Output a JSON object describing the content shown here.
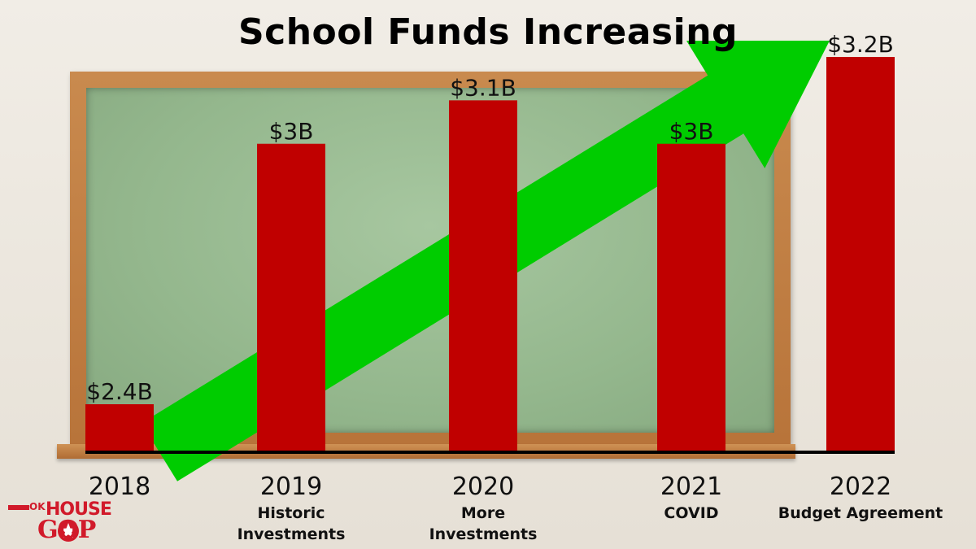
{
  "chart_data": {
    "type": "bar",
    "title": "School Funds Increasing",
    "categories": [
      "2018",
      "2019",
      "2020",
      "2021",
      "2022"
    ],
    "category_sublabels": [
      "",
      "Historic\nInvestments",
      "More\nInvestments",
      "COVID",
      "Budget Agreement"
    ],
    "values": [
      2.4,
      3.0,
      3.1,
      3.0,
      3.2
    ],
    "value_labels": [
      "$2.4B",
      "$3B",
      "$3.1B",
      "$3B",
      "$3.2B"
    ],
    "unit": "$B",
    "bar_color": "#c00000",
    "arrow_color": "#00cc00",
    "trend": "increasing",
    "grid": false,
    "legend": "none"
  },
  "logo": {
    "text_ok": "OK",
    "text_house": "HOUSE",
    "text_gop": "GOP",
    "star_icon": "white-star-icon",
    "color": "#d11a2a"
  }
}
